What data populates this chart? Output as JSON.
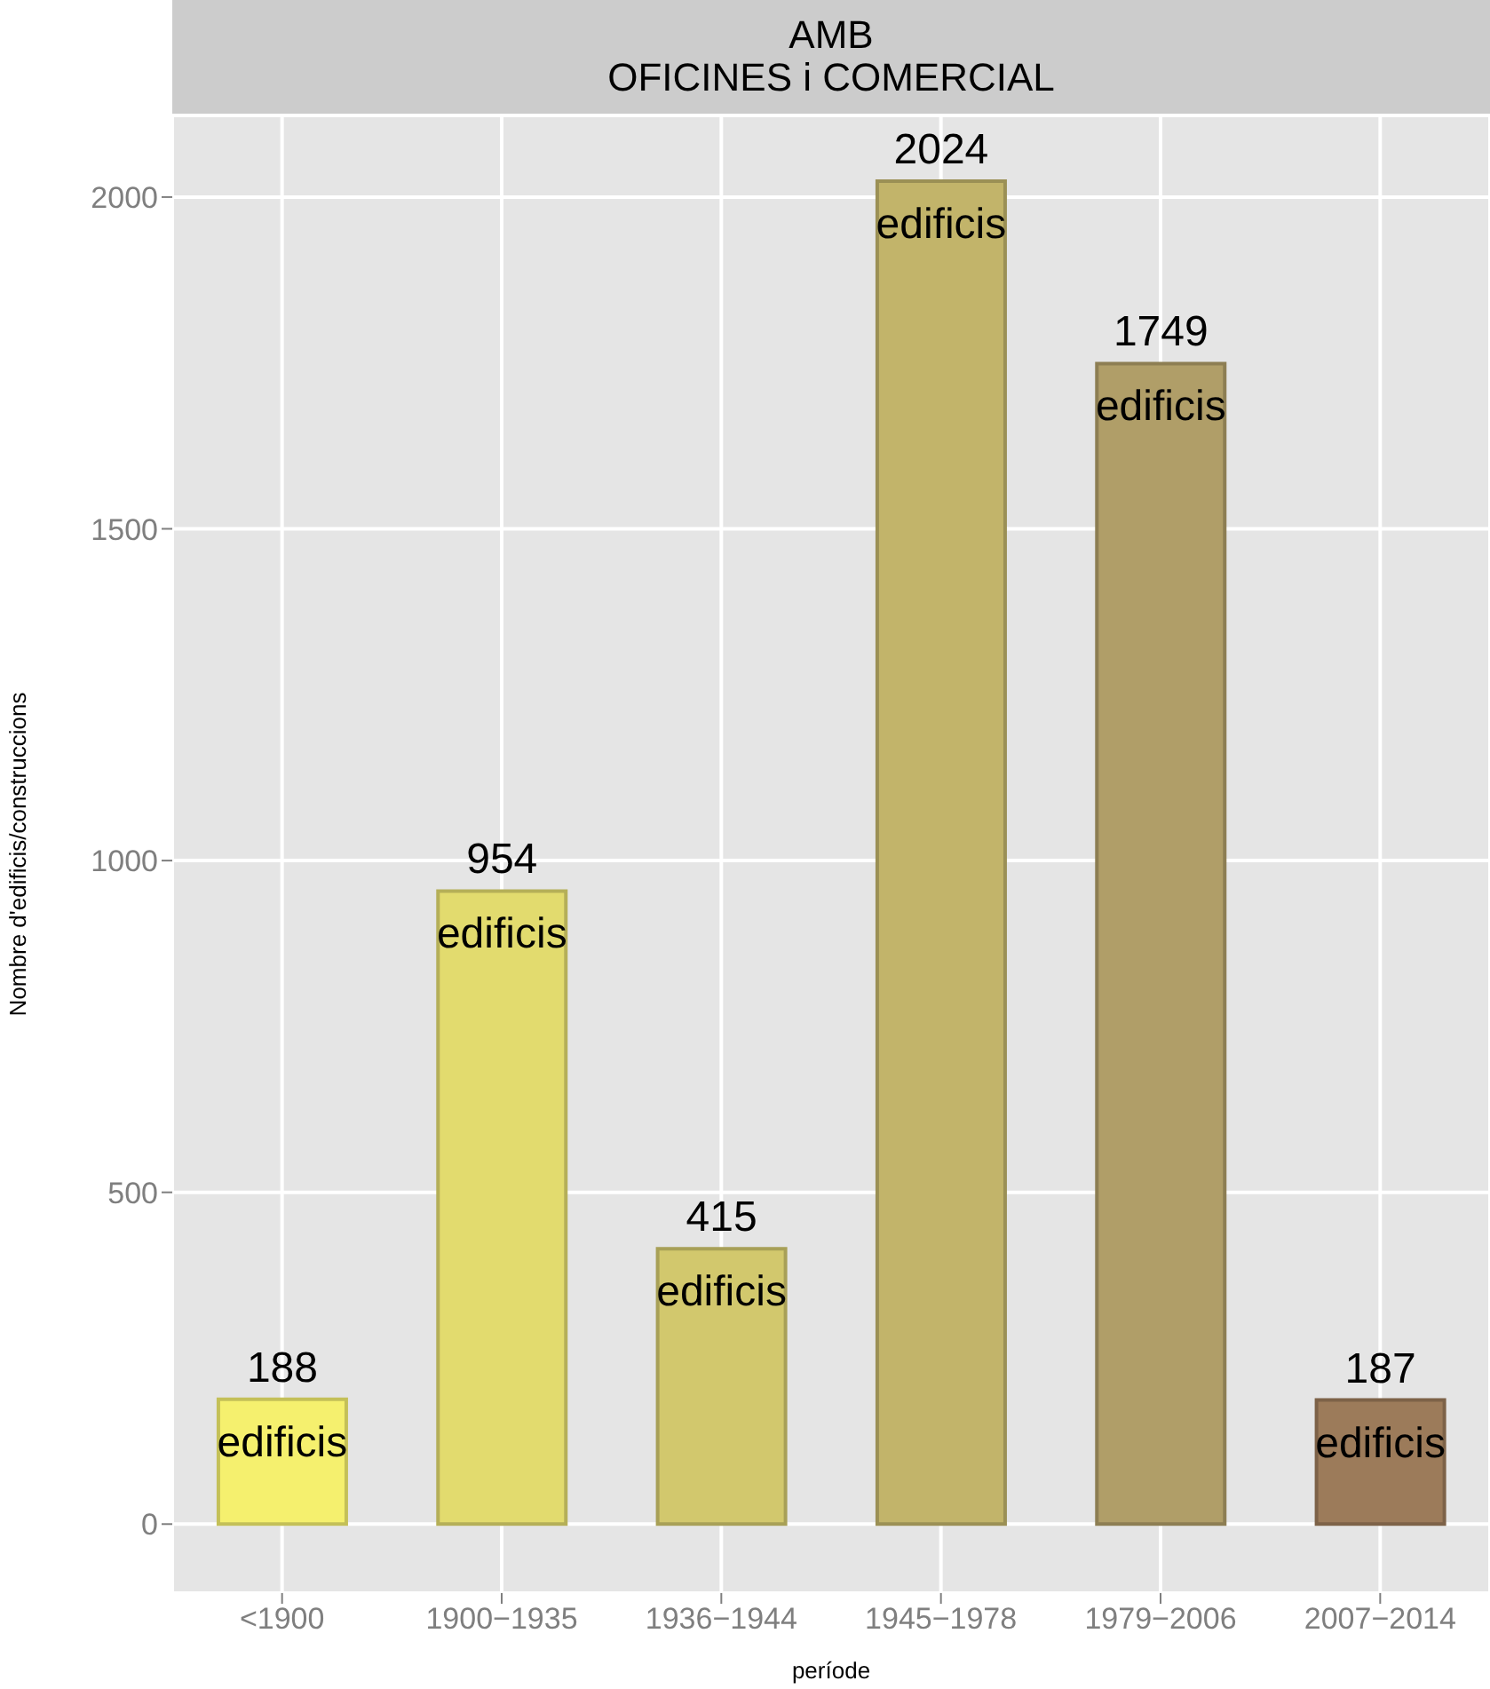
{
  "chart_data": {
    "type": "bar",
    "title": "AMB",
    "subtitle": "OFICINES i COMERCIAL",
    "xlabel": "període",
    "ylabel": "Nombre d'edificis/construccions",
    "categories": [
      "<1900",
      "1900−1935",
      "1936−1944",
      "1945−1978",
      "1979−2006",
      "2007−2014"
    ],
    "values": [
      188,
      954,
      415,
      2024,
      1749,
      187
    ],
    "colors": [
      "#f5f06e",
      "#e2db6e",
      "#d2c86d",
      "#c2b46a",
      "#b09e68",
      "#9c7b5a"
    ],
    "data_labels": true,
    "annotations": [
      {
        "text": "edificis",
        "x": "<1900",
        "y": 188
      },
      {
        "text": "edificis",
        "x": "1900−1935",
        "y": 954
      },
      {
        "text": "edificis",
        "x": "1936−1944",
        "y": 415
      },
      {
        "text": "edificis",
        "x": "1945−1978",
        "y": 2024
      },
      {
        "text": "edificis",
        "x": "1979−2006",
        "y": 1749
      },
      {
        "text": "edificis",
        "x": "2007−2014",
        "y": 187
      }
    ],
    "ylim": [
      -104,
      2123
    ],
    "yticks": [
      0,
      500,
      1000,
      1500,
      2000
    ],
    "grid": true,
    "legend": false
  }
}
